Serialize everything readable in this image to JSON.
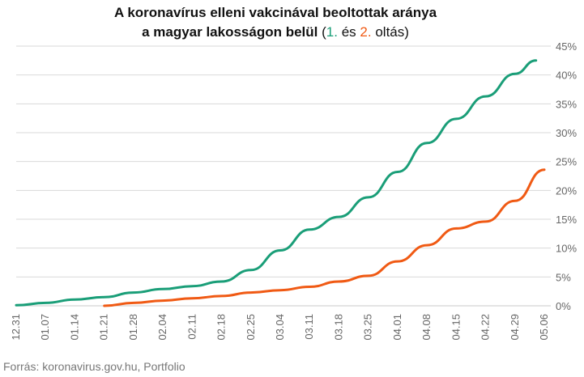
{
  "title": {
    "line1": "A koronavírus elleni vakcinával beoltottak aránya",
    "line2": "a magyar lakosságon belül",
    "paren_open": "(",
    "first_marker": "1.",
    "conj": "és",
    "second_marker": "2.",
    "suffix": "oltás)"
  },
  "source": "Forrás: koronavirus.gov.hu, Portfolio",
  "colors": {
    "first": "#1a9e78",
    "second": "#f05a14",
    "grid": "#d9d9d9"
  },
  "chart_data": {
    "type": "line",
    "x_ticks": [
      "12.31",
      "01.07",
      "01.14",
      "01.21",
      "01.28",
      "02.04",
      "02.11",
      "02.18",
      "02.25",
      "03.04",
      "03.11",
      "03.18",
      "03.25",
      "04.01",
      "04.08",
      "04.15",
      "04.22",
      "04.29",
      "05.06"
    ],
    "y_ticks": [
      "0%",
      "5%",
      "10%",
      "15%",
      "20%",
      "25%",
      "30%",
      "35%",
      "40%",
      "45%"
    ],
    "ylim": [
      0,
      45
    ],
    "grid": true,
    "series": [
      {
        "name": "1.",
        "points": [
          [
            "12.31",
            0.1
          ],
          [
            "01.07",
            0.5
          ],
          [
            "01.14",
            1.1
          ],
          [
            "01.21",
            1.5
          ],
          [
            "01.28",
            2.3
          ],
          [
            "02.04",
            2.9
          ],
          [
            "02.11",
            3.4
          ],
          [
            "02.18",
            4.2
          ],
          [
            "02.25",
            6.2
          ],
          [
            "03.04",
            9.6
          ],
          [
            "03.11",
            13.2
          ],
          [
            "03.18",
            15.4
          ],
          [
            "03.25",
            18.8
          ],
          [
            "04.01",
            23.2
          ],
          [
            "04.08",
            28.2
          ],
          [
            "04.15",
            32.4
          ],
          [
            "04.22",
            36.3
          ],
          [
            "04.29",
            40.2
          ],
          [
            "05.04",
            42.5
          ]
        ]
      },
      {
        "name": "2.",
        "points": [
          [
            "01.21",
            0.0
          ],
          [
            "01.28",
            0.5
          ],
          [
            "02.04",
            0.9
          ],
          [
            "02.11",
            1.3
          ],
          [
            "02.18",
            1.7
          ],
          [
            "02.25",
            2.3
          ],
          [
            "03.04",
            2.7
          ],
          [
            "03.11",
            3.3
          ],
          [
            "03.18",
            4.2
          ],
          [
            "03.25",
            5.2
          ],
          [
            "04.01",
            7.7
          ],
          [
            "04.08",
            10.5
          ],
          [
            "04.15",
            13.4
          ],
          [
            "04.22",
            14.6
          ],
          [
            "04.29",
            18.2
          ],
          [
            "05.06",
            23.6
          ]
        ]
      }
    ]
  }
}
